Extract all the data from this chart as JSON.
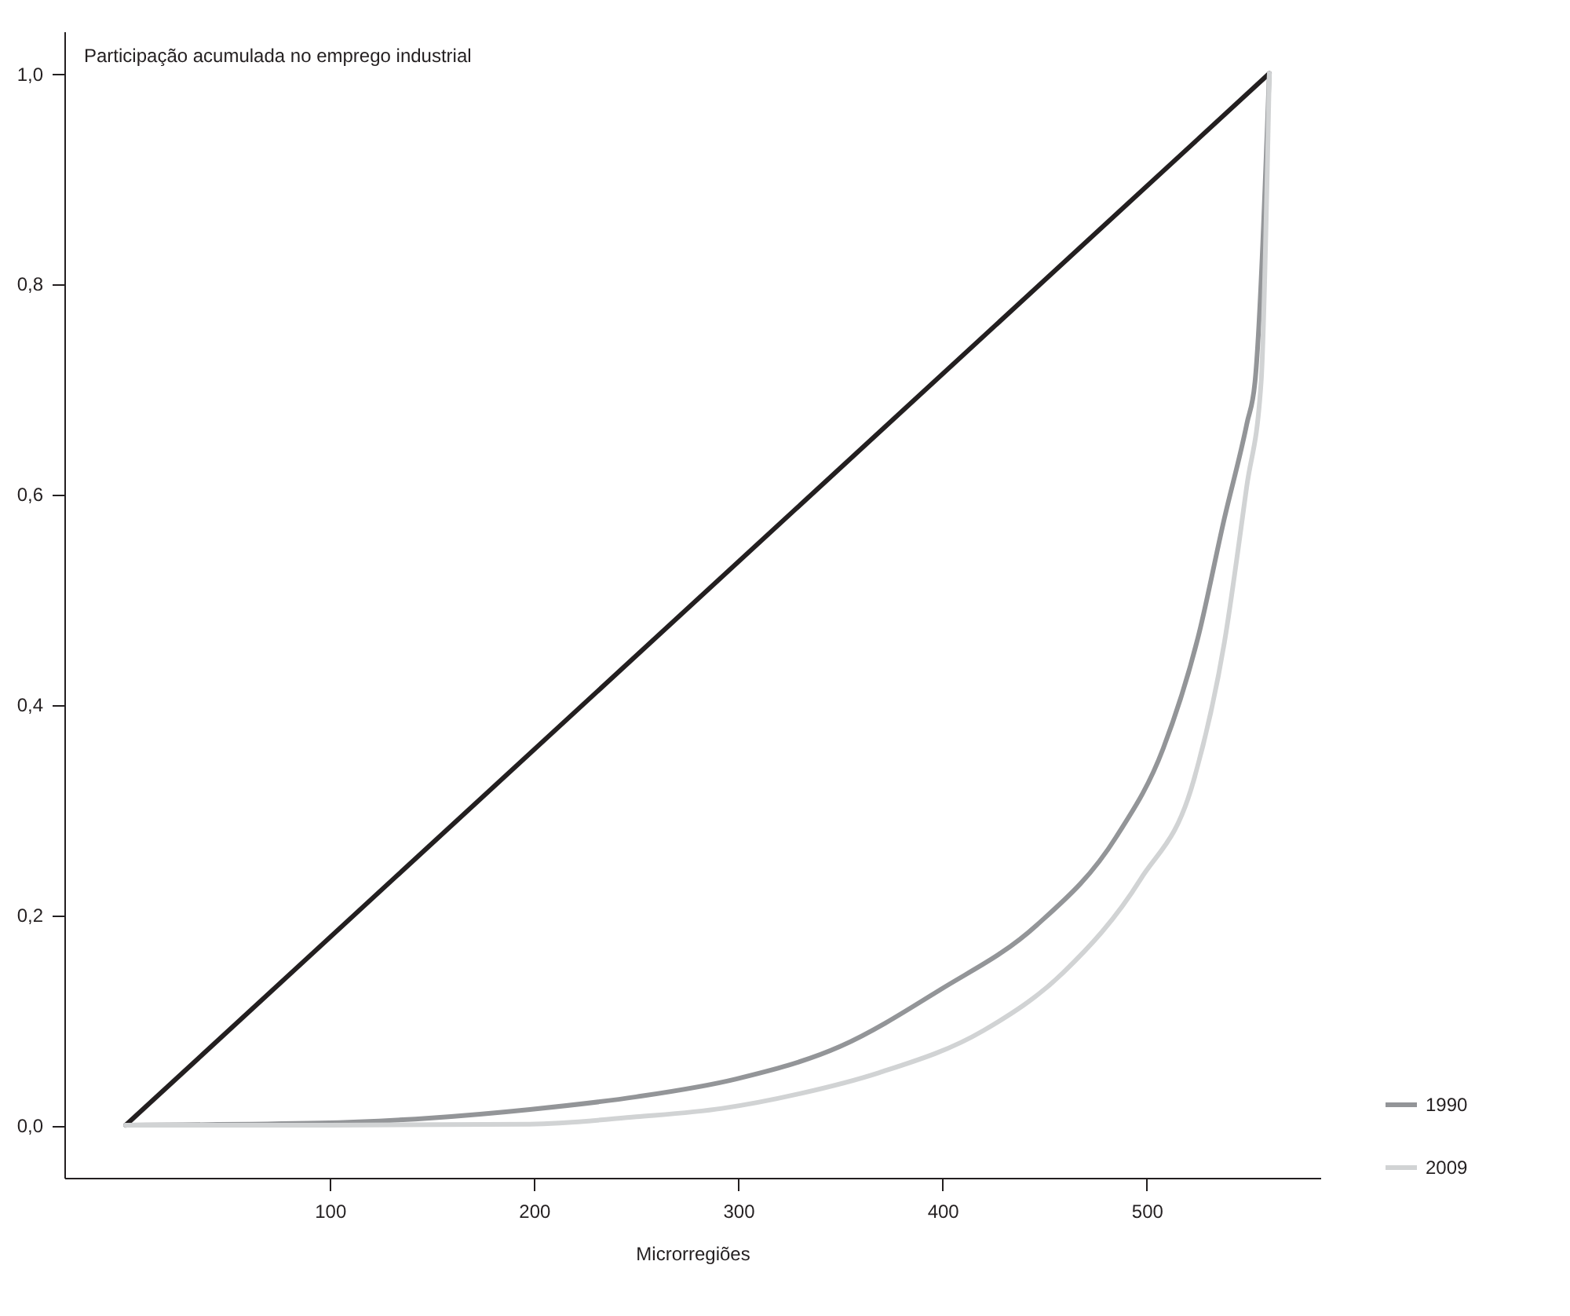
{
  "chart_data": {
    "type": "line",
    "ylabel": "Participação acumulada no emprego industrial",
    "xlabel": "Microrregiões",
    "xlim": [
      -30,
      585
    ],
    "ylim": [
      -0.05,
      1.04
    ],
    "xticks": [
      100,
      200,
      300,
      400,
      500
    ],
    "yticks": [
      {
        "value": 0,
        "label": "0,0"
      },
      {
        "value": 0.2,
        "label": "0,2"
      },
      {
        "value": 0.4,
        "label": "0,4"
      },
      {
        "value": 0.6,
        "label": "0,6"
      },
      {
        "value": 0.8,
        "label": "0,8"
      },
      {
        "value": 1,
        "label": "1,0"
      }
    ],
    "grid": false,
    "legend": "right",
    "series": [
      {
        "color": "#231f20",
        "x": [
          0,
          560
        ],
        "values": [
          0,
          1
        ]
      },
      {
        "name": "1990",
        "color": "#939598",
        "x": [
          0,
          95,
          150,
          198,
          250,
          299,
          350,
          399,
          446,
          485,
          508,
          525,
          538,
          549,
          553,
          560
        ],
        "values": [
          0,
          0.002,
          0.007,
          0.015,
          0.027,
          0.044,
          0.075,
          0.129,
          0.19,
          0.274,
          0.358,
          0.463,
          0.577,
          0.667,
          0.707,
          1
        ]
      },
      {
        "name": "2009",
        "color": "#d1d3d4",
        "x": [
          0,
          100,
          198,
          250,
          292,
          330,
          369,
          420,
          459,
          497,
          523,
          538,
          549,
          556,
          560
        ],
        "values": [
          0,
          0,
          0.001,
          0.008,
          0.016,
          0.03,
          0.05,
          0.09,
          0.145,
          0.234,
          0.328,
          0.459,
          0.608,
          0.707,
          1
        ]
      }
    ]
  }
}
